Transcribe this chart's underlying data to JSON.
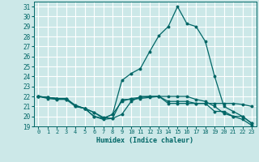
{
  "title": "",
  "xlabel": "Humidex (Indice chaleur)",
  "background_color": "#cce8e8",
  "grid_color": "#ffffff",
  "line_color": "#006666",
  "xlim": [
    -0.5,
    23.5
  ],
  "ylim": [
    19,
    31.5
  ],
  "yticks": [
    19,
    20,
    21,
    22,
    23,
    24,
    25,
    26,
    27,
    28,
    29,
    30,
    31
  ],
  "xticks": [
    0,
    1,
    2,
    3,
    4,
    5,
    6,
    7,
    8,
    9,
    10,
    11,
    12,
    13,
    14,
    15,
    16,
    17,
    18,
    19,
    20,
    21,
    22,
    23
  ],
  "series": [
    {
      "x": [
        0,
        1,
        2,
        3,
        4,
        5,
        6,
        7,
        8,
        9,
        10,
        11,
        12,
        13,
        14,
        15,
        16,
        17,
        18,
        19,
        20,
        21,
        22,
        23
      ],
      "y": [
        22.0,
        21.9,
        21.8,
        21.8,
        21.0,
        20.8,
        20.0,
        19.7,
        19.8,
        21.7,
        21.7,
        21.8,
        21.9,
        22.0,
        21.3,
        21.3,
        21.3,
        21.3,
        21.3,
        21.3,
        21.3,
        21.3,
        21.2,
        21.0
      ]
    },
    {
      "x": [
        0,
        1,
        2,
        3,
        4,
        5,
        6,
        7,
        8,
        9,
        10,
        11,
        12,
        13,
        14,
        15,
        16,
        17,
        18,
        19,
        20,
        21,
        22,
        23
      ],
      "y": [
        22.0,
        21.8,
        21.7,
        21.7,
        21.0,
        20.8,
        20.0,
        19.8,
        20.2,
        21.5,
        21.8,
        21.9,
        22.0,
        22.0,
        21.5,
        21.5,
        21.5,
        21.3,
        21.3,
        20.5,
        20.5,
        20.0,
        20.0,
        19.3
      ]
    },
    {
      "x": [
        0,
        1,
        2,
        3,
        4,
        5,
        6,
        7,
        8,
        9,
        10,
        11,
        12,
        13,
        14,
        15,
        16,
        17,
        18,
        19,
        20,
        21,
        22,
        23
      ],
      "y": [
        22.0,
        21.9,
        21.8,
        21.7,
        21.1,
        20.8,
        20.4,
        19.8,
        20.2,
        23.6,
        24.3,
        24.8,
        26.5,
        28.1,
        29.0,
        31.0,
        29.3,
        29.0,
        27.5,
        24.0,
        21.0,
        20.5,
        20.0,
        19.3
      ]
    },
    {
      "x": [
        0,
        1,
        2,
        3,
        4,
        5,
        6,
        7,
        8,
        9,
        10,
        11,
        12,
        13,
        14,
        15,
        16,
        17,
        18,
        19,
        20,
        21,
        22,
        23
      ],
      "y": [
        22.0,
        21.9,
        21.8,
        21.8,
        21.1,
        20.8,
        20.4,
        19.9,
        19.8,
        20.2,
        21.5,
        22.0,
        22.0,
        22.0,
        22.0,
        22.0,
        22.0,
        21.7,
        21.5,
        21.0,
        20.3,
        20.0,
        19.7,
        19.1
      ]
    }
  ]
}
